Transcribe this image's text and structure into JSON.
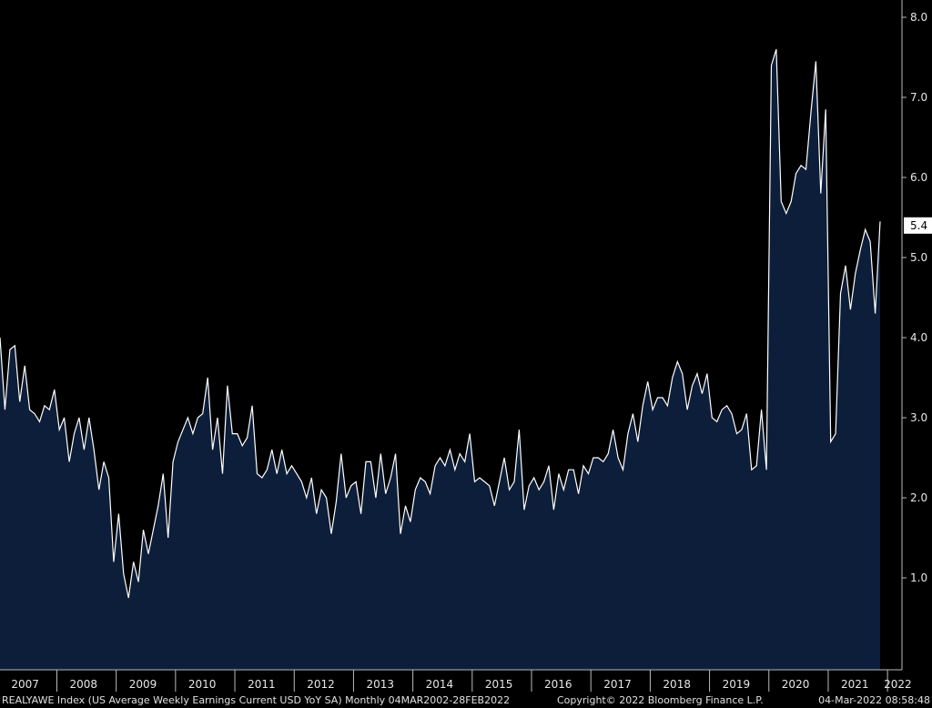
{
  "chart_data": {
    "type": "area",
    "title": "",
    "xlabel": "",
    "ylabel": "",
    "ylim": [
      0,
      8.3
    ],
    "y_ticks": [
      "1.0",
      "2.0",
      "3.0",
      "4.0",
      "5.0",
      "6.0",
      "7.0",
      "8.0"
    ],
    "x_ticks": [
      "2007",
      "2008",
      "2009",
      "2010",
      "2011",
      "2012",
      "2013",
      "2014",
      "2015",
      "2016",
      "2017",
      "2018",
      "2019",
      "2020",
      "2021",
      "2022"
    ],
    "last_value_label": "5.4",
    "grid": false,
    "series": [
      {
        "values": [
          4.0,
          3.1,
          3.85,
          3.9,
          3.2,
          3.65,
          3.1,
          3.05,
          2.95,
          3.15,
          3.1,
          3.35,
          2.85,
          3.0,
          2.45,
          2.8,
          3.0,
          2.6,
          3.0,
          2.6,
          2.1,
          2.45,
          2.25,
          1.2,
          1.8,
          1.05,
          0.75,
          1.2,
          0.95,
          1.6,
          1.3,
          1.6,
          1.9,
          2.3,
          1.5,
          2.45,
          2.7,
          2.85,
          3.0,
          2.8,
          3.0,
          3.05,
          3.5,
          2.6,
          3.0,
          2.3,
          3.4,
          2.8,
          2.8,
          2.65,
          2.75,
          3.15,
          2.3,
          2.25,
          2.35,
          2.6,
          2.3,
          2.6,
          2.3,
          2.4,
          2.3,
          2.2,
          2.0,
          2.25,
          1.8,
          2.1,
          2.0,
          1.55,
          1.95,
          2.55,
          2.0,
          2.15,
          2.2,
          1.8,
          2.45,
          2.45,
          2.0,
          2.55,
          2.05,
          2.25,
          2.55,
          1.55,
          1.9,
          1.7,
          2.1,
          2.25,
          2.2,
          2.05,
          2.4,
          2.5,
          2.4,
          2.6,
          2.35,
          2.55,
          2.45,
          2.8,
          2.2,
          2.25,
          2.2,
          2.15,
          1.9,
          2.2,
          2.5,
          2.1,
          2.2,
          2.85,
          1.85,
          2.15,
          2.25,
          2.1,
          2.2,
          2.4,
          1.85,
          2.3,
          2.1,
          2.35,
          2.35,
          2.05,
          2.4,
          2.3,
          2.5,
          2.5,
          2.45,
          2.55,
          2.85,
          2.5,
          2.35,
          2.8,
          3.05,
          2.7,
          3.15,
          3.45,
          3.1,
          3.25,
          3.25,
          3.15,
          3.5,
          3.7,
          3.55,
          3.1,
          3.4,
          3.55,
          3.3,
          3.55,
          3.0,
          2.95,
          3.1,
          3.15,
          3.05,
          2.8,
          2.85,
          3.05,
          2.35,
          2.4,
          3.1,
          2.35,
          7.4,
          7.6,
          5.7,
          5.55,
          5.7,
          6.05,
          6.15,
          6.1,
          6.8,
          7.45,
          5.8,
          6.85,
          2.7,
          2.8,
          4.55,
          4.9,
          4.35,
          4.8,
          5.1,
          5.35,
          5.2,
          4.3,
          5.45
        ]
      }
    ]
  },
  "footer": {
    "left": "REALYAWE Index (US Average Weekly Earnings Current USD YoY SA)  Monthly 04MAR2002-28FEB2022",
    "center": "Copyright© 2022 Bloomberg Finance L.P.",
    "right": "04-Mar-2022 08:58:48"
  },
  "colors": {
    "background": "#000000",
    "area_fill": "#0c1e3a",
    "line": "#ffffff",
    "axis": "#bbbbbb",
    "text": "#e6e6e6",
    "label_box": "#ffffff",
    "label_text": "#000000"
  }
}
